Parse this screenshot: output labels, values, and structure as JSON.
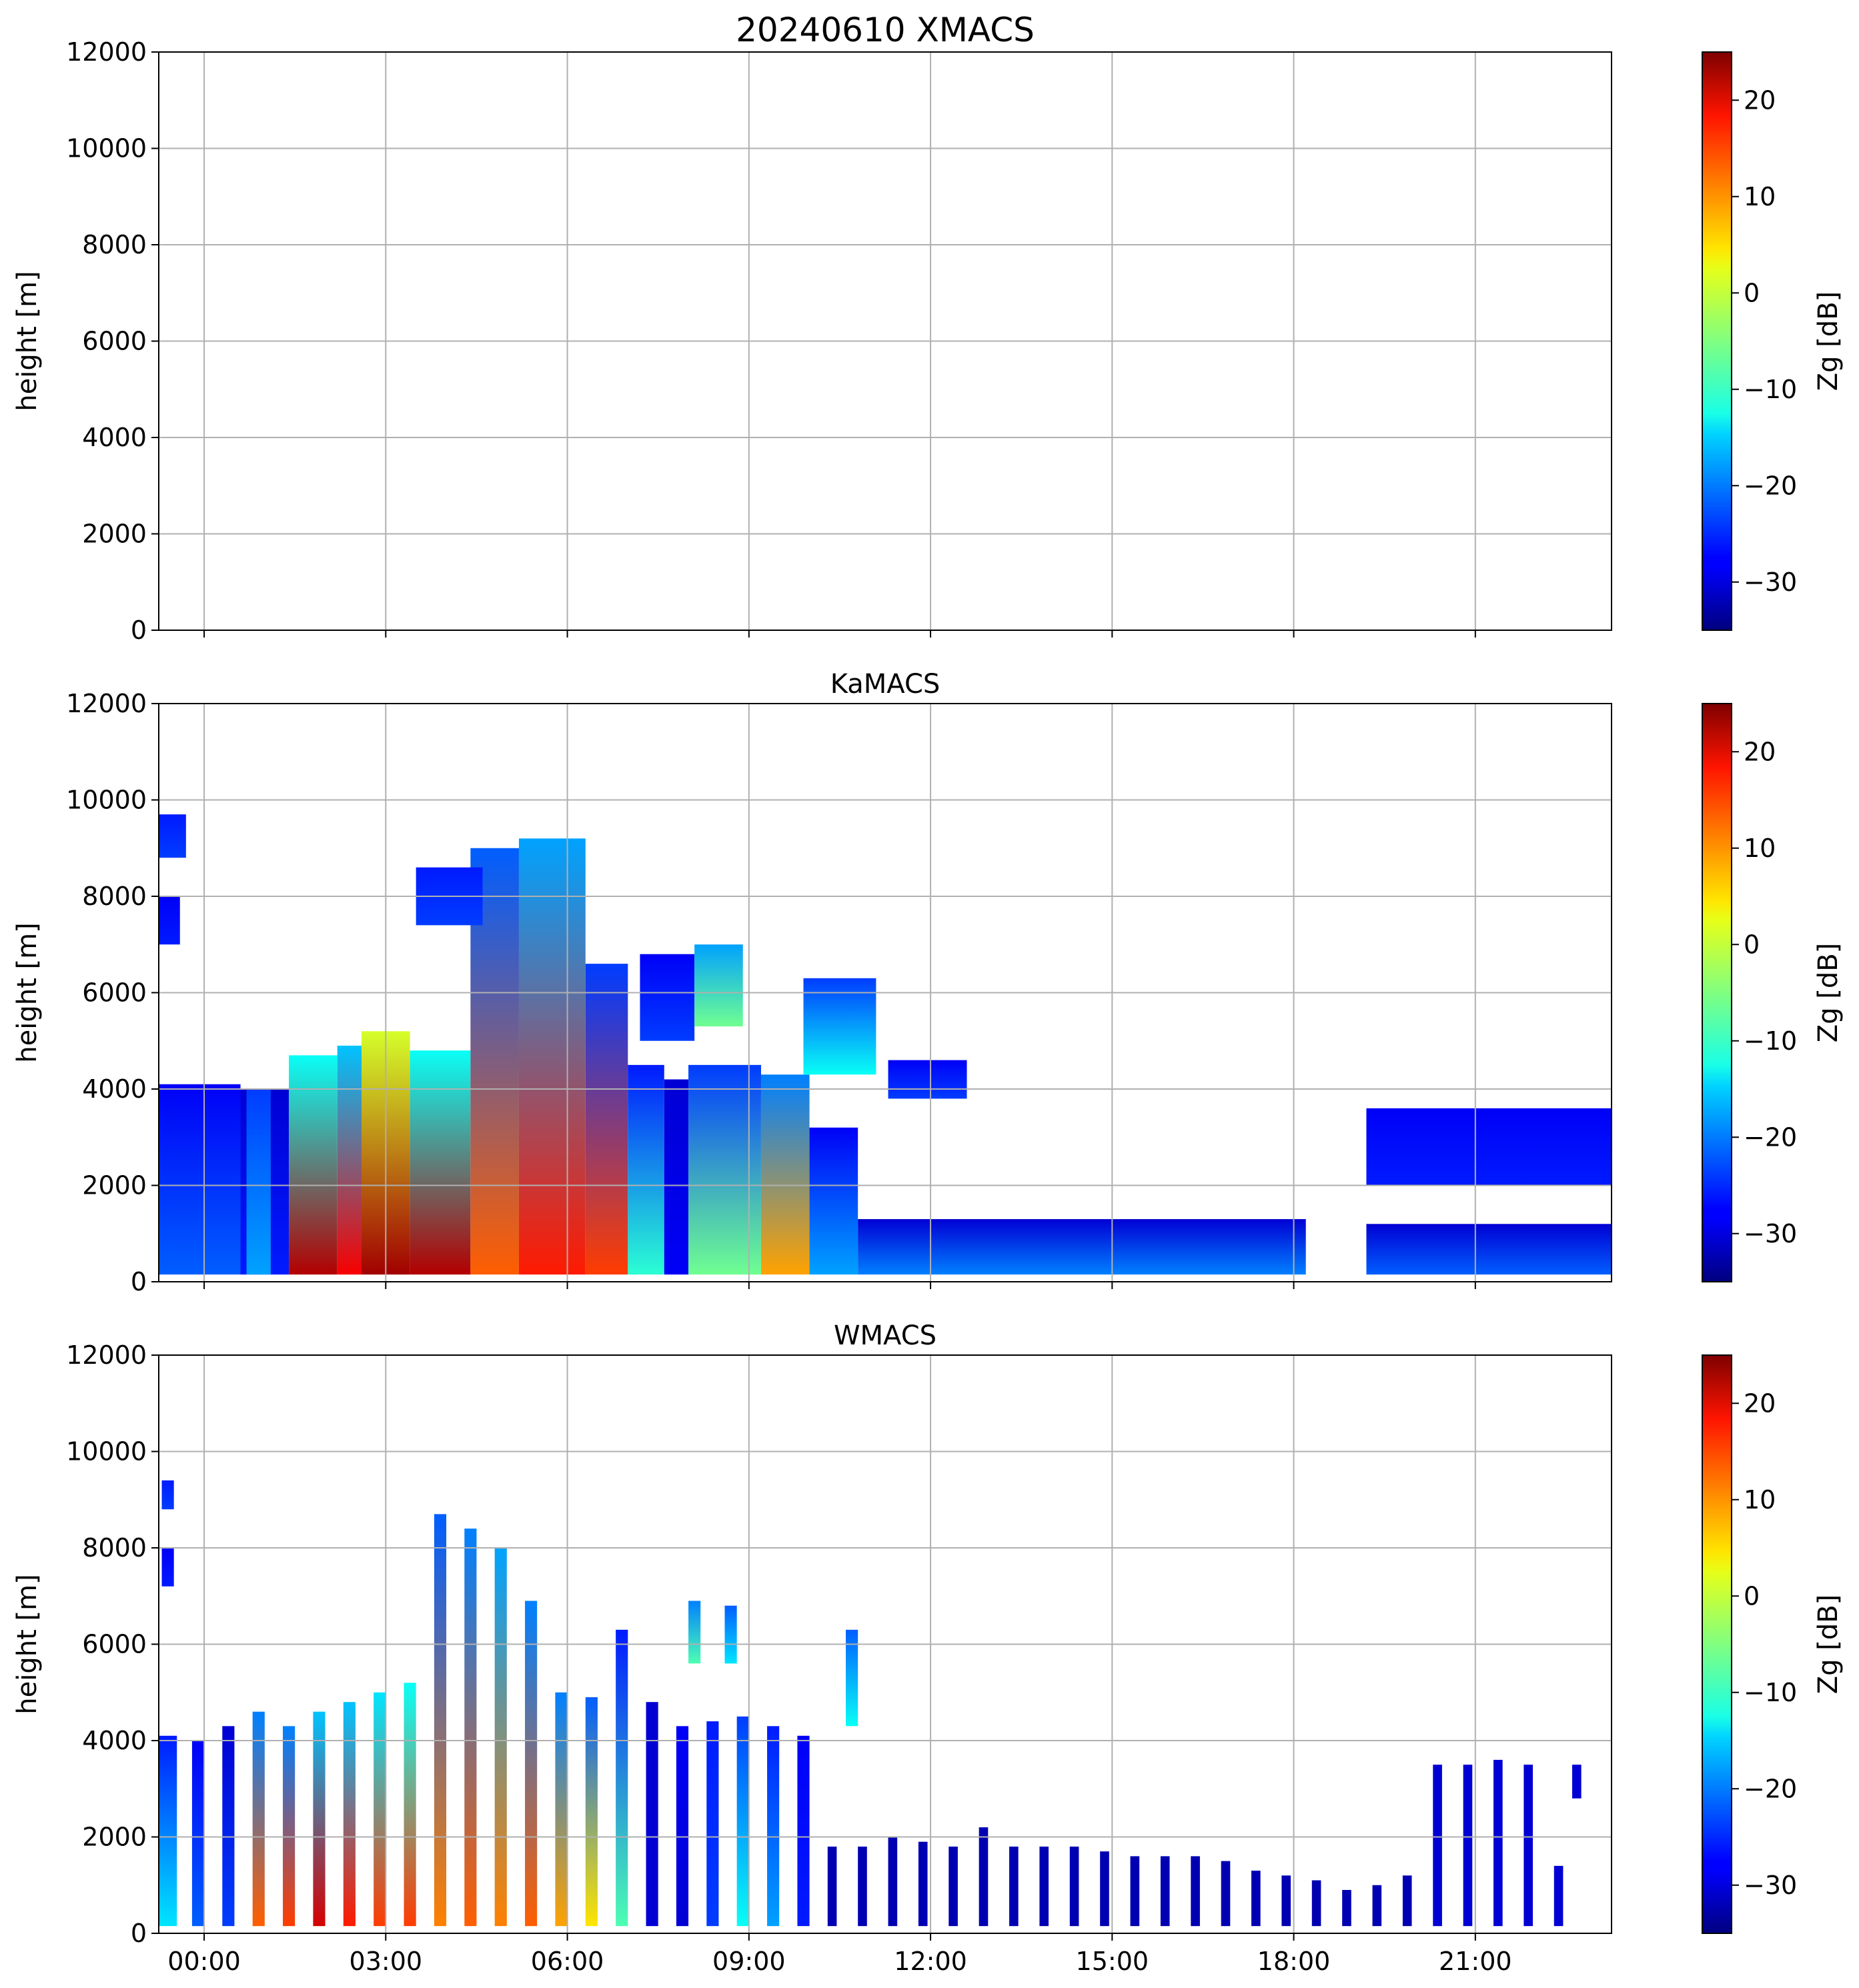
{
  "figure": {
    "title": "20240610 XMACS",
    "colormap": "jet"
  },
  "chart_data": [
    {
      "type": "heatmap",
      "panel": "XMACS",
      "title": "20240610 XMACS",
      "xlabel": "",
      "ylabel": "height [m]",
      "x_tick_labels": [
        "00:00",
        "03:00",
        "06:00",
        "09:00",
        "12:00",
        "15:00",
        "18:00",
        "21:00"
      ],
      "x_range_hours": [
        -0.75,
        23.25
      ],
      "ylim": [
        0,
        12000
      ],
      "y_ticks": [
        0,
        2000,
        4000,
        6000,
        8000,
        10000,
        12000
      ],
      "grid": true,
      "colorbar": {
        "label": "Zg [dB]",
        "range": [
          -35,
          25
        ],
        "ticks": [
          -30,
          -20,
          -10,
          0,
          10,
          20
        ]
      },
      "echoes": []
    },
    {
      "type": "heatmap",
      "panel": "KaMACS",
      "title": "KaMACS",
      "xlabel": "",
      "ylabel": "height [m]",
      "x_tick_labels": [
        "00:00",
        "03:00",
        "06:00",
        "09:00",
        "12:00",
        "15:00",
        "18:00",
        "21:00"
      ],
      "x_range_hours": [
        -0.75,
        23.25
      ],
      "ylim": [
        0,
        12000
      ],
      "y_ticks": [
        0,
        2000,
        4000,
        6000,
        8000,
        10000,
        12000
      ],
      "grid": true,
      "colorbar": {
        "label": "Zg [dB]",
        "range": [
          -35,
          25
        ],
        "ticks": [
          -30,
          -20,
          -10,
          0,
          10,
          20
        ]
      },
      "echoes": [
        {
          "t0": -0.75,
          "t1": 0.6,
          "z0": 150,
          "z1": 4100,
          "dbz_bottom": -22,
          "dbz_top": -28
        },
        {
          "t0": 0.6,
          "t1": 1.4,
          "z0": 150,
          "z1": 4000,
          "dbz_bottom": -26,
          "dbz_top": -30
        },
        {
          "t0": 0.7,
          "t1": 1.1,
          "z0": 150,
          "z1": 4000,
          "dbz_bottom": -18,
          "dbz_top": -24
        },
        {
          "t0": 1.4,
          "t1": 2.2,
          "z0": 150,
          "z1": 4700,
          "dbz_bottom": 22,
          "dbz_top": -12
        },
        {
          "t0": 2.2,
          "t1": 2.6,
          "z0": 150,
          "z1": 4900,
          "dbz_bottom": 18,
          "dbz_top": -16
        },
        {
          "t0": 2.6,
          "t1": 3.4,
          "z0": 150,
          "z1": 5200,
          "dbz_bottom": 23,
          "dbz_top": 0
        },
        {
          "t0": 3.4,
          "t1": 4.4,
          "z0": 150,
          "z1": 4800,
          "dbz_bottom": 22,
          "dbz_top": -12
        },
        {
          "t0": 4.4,
          "t1": 5.2,
          "z0": 150,
          "z1": 9000,
          "dbz_bottom": 12,
          "dbz_top": -22
        },
        {
          "t0": 5.2,
          "t1": 6.3,
          "z0": 150,
          "z1": 9200,
          "dbz_bottom": 16,
          "dbz_top": -18
        },
        {
          "t0": 6.3,
          "t1": 7.0,
          "z0": 150,
          "z1": 6600,
          "dbz_bottom": 14,
          "dbz_top": -24
        },
        {
          "t0": 7.0,
          "t1": 7.6,
          "z0": 150,
          "z1": 4500,
          "dbz_bottom": -10,
          "dbz_top": -26
        },
        {
          "t0": 7.6,
          "t1": 8.0,
          "z0": 150,
          "z1": 4200,
          "dbz_bottom": -28,
          "dbz_top": -30
        },
        {
          "t0": 8.0,
          "t1": 9.2,
          "z0": 150,
          "z1": 4500,
          "dbz_bottom": -6,
          "dbz_top": -24
        },
        {
          "t0": 9.2,
          "t1": 10.0,
          "z0": 150,
          "z1": 4300,
          "dbz_bottom": 8,
          "dbz_top": -20
        },
        {
          "t0": 10.0,
          "t1": 10.8,
          "z0": 150,
          "z1": 3200,
          "dbz_bottom": -18,
          "dbz_top": -28
        },
        {
          "t0": 10.8,
          "t1": 18.2,
          "z0": 150,
          "z1": 1300,
          "dbz_bottom": -20,
          "dbz_top": -30
        },
        {
          "t0": 19.2,
          "t1": 23.25,
          "z0": 150,
          "z1": 1200,
          "dbz_bottom": -22,
          "dbz_top": -30
        },
        {
          "t0": 19.2,
          "t1": 23.25,
          "z0": 2000,
          "z1": 3600,
          "dbz_bottom": -26,
          "dbz_top": -28
        },
        {
          "t0": -0.75,
          "t1": -0.3,
          "z0": 8800,
          "z1": 9700,
          "dbz_bottom": -24,
          "dbz_top": -26
        },
        {
          "t0": -0.75,
          "t1": -0.4,
          "z0": 7000,
          "z1": 8000,
          "dbz_bottom": -26,
          "dbz_top": -28
        },
        {
          "t0": 3.5,
          "t1": 4.6,
          "z0": 7400,
          "z1": 8600,
          "dbz_bottom": -24,
          "dbz_top": -26
        },
        {
          "t0": 7.2,
          "t1": 8.1,
          "z0": 5000,
          "z1": 6800,
          "dbz_bottom": -24,
          "dbz_top": -28
        },
        {
          "t0": 8.1,
          "t1": 8.9,
          "z0": 5300,
          "z1": 7000,
          "dbz_bottom": -6,
          "dbz_top": -18
        },
        {
          "t0": 9.9,
          "t1": 11.1,
          "z0": 4300,
          "z1": 6300,
          "dbz_bottom": -12,
          "dbz_top": -24
        },
        {
          "t0": 11.3,
          "t1": 12.6,
          "z0": 3800,
          "z1": 4600,
          "dbz_bottom": -24,
          "dbz_top": -28
        }
      ]
    },
    {
      "type": "heatmap",
      "panel": "WMACS",
      "title": "WMACS",
      "xlabel": "",
      "ylabel": "height [m]",
      "x_tick_labels": [
        "00:00",
        "03:00",
        "06:00",
        "09:00",
        "12:00",
        "15:00",
        "18:00",
        "21:00"
      ],
      "x_range_hours": [
        -0.75,
        23.25
      ],
      "ylim": [
        0,
        12000
      ],
      "y_ticks": [
        0,
        2000,
        4000,
        6000,
        8000,
        10000,
        12000
      ],
      "grid": true,
      "colorbar": {
        "label": "Zg [dB]",
        "range": [
          -35,
          25
        ],
        "ticks": [
          -30,
          -20,
          -10,
          0,
          10,
          20
        ]
      },
      "echoes": [
        {
          "t0": -0.75,
          "t1": -0.45,
          "z0": 150,
          "z1": 4100,
          "dbz_bottom": -14,
          "dbz_top": -26
        },
        {
          "t0": -0.2,
          "t1": 0.0,
          "z0": 150,
          "z1": 4000,
          "dbz_bottom": -22,
          "dbz_top": -28
        },
        {
          "t0": 0.3,
          "t1": 0.5,
          "z0": 150,
          "z1": 4300,
          "dbz_bottom": -24,
          "dbz_top": -30
        },
        {
          "t0": 0.8,
          "t1": 1.0,
          "z0": 150,
          "z1": 4600,
          "dbz_bottom": 12,
          "dbz_top": -20
        },
        {
          "t0": 1.3,
          "t1": 1.5,
          "z0": 150,
          "z1": 4300,
          "dbz_bottom": 14,
          "dbz_top": -20
        },
        {
          "t0": 1.8,
          "t1": 2.0,
          "z0": 150,
          "z1": 4600,
          "dbz_bottom": 20,
          "dbz_top": -16
        },
        {
          "t0": 2.3,
          "t1": 2.5,
          "z0": 150,
          "z1": 4800,
          "dbz_bottom": 16,
          "dbz_top": -16
        },
        {
          "t0": 2.8,
          "t1": 3.0,
          "z0": 150,
          "z1": 5000,
          "dbz_bottom": 14,
          "dbz_top": -14
        },
        {
          "t0": 3.3,
          "t1": 3.5,
          "z0": 150,
          "z1": 5200,
          "dbz_bottom": 14,
          "dbz_top": -12
        },
        {
          "t0": 3.8,
          "t1": 4.0,
          "z0": 150,
          "z1": 8700,
          "dbz_bottom": 10,
          "dbz_top": -22
        },
        {
          "t0": 4.3,
          "t1": 4.5,
          "z0": 150,
          "z1": 8400,
          "dbz_bottom": 12,
          "dbz_top": -20
        },
        {
          "t0": 4.8,
          "t1": 5.0,
          "z0": 150,
          "z1": 8000,
          "dbz_bottom": 10,
          "dbz_top": -18
        },
        {
          "t0": 5.3,
          "t1": 5.5,
          "z0": 150,
          "z1": 6900,
          "dbz_bottom": 12,
          "dbz_top": -20
        },
        {
          "t0": 5.8,
          "t1": 6.0,
          "z0": 150,
          "z1": 5000,
          "dbz_bottom": 8,
          "dbz_top": -20
        },
        {
          "t0": 6.3,
          "t1": 6.5,
          "z0": 150,
          "z1": 4900,
          "dbz_bottom": 4,
          "dbz_top": -22
        },
        {
          "t0": 6.8,
          "t1": 7.0,
          "z0": 150,
          "z1": 6300,
          "dbz_bottom": -8,
          "dbz_top": -26
        },
        {
          "t0": 7.3,
          "t1": 7.5,
          "z0": 150,
          "z1": 4800,
          "dbz_bottom": -30,
          "dbz_top": -30
        },
        {
          "t0": 7.8,
          "t1": 8.0,
          "z0": 150,
          "z1": 4300,
          "dbz_bottom": -30,
          "dbz_top": -28
        },
        {
          "t0": 8.3,
          "t1": 8.5,
          "z0": 150,
          "z1": 4400,
          "dbz_bottom": -24,
          "dbz_top": -26
        },
        {
          "t0": 8.8,
          "t1": 9.0,
          "z0": 150,
          "z1": 4500,
          "dbz_bottom": -12,
          "dbz_top": -24
        },
        {
          "t0": 9.3,
          "t1": 9.5,
          "z0": 150,
          "z1": 4300,
          "dbz_bottom": -18,
          "dbz_top": -26
        },
        {
          "t0": 9.8,
          "t1": 10.0,
          "z0": 150,
          "z1": 4100,
          "dbz_bottom": -26,
          "dbz_top": -28
        },
        {
          "t0": 10.3,
          "t1": 10.45,
          "z0": 150,
          "z1": 1800,
          "dbz_bottom": -32,
          "dbz_top": -32
        },
        {
          "t0": 10.8,
          "t1": 10.95,
          "z0": 150,
          "z1": 1800,
          "dbz_bottom": -32,
          "dbz_top": -32
        },
        {
          "t0": 11.3,
          "t1": 11.45,
          "z0": 150,
          "z1": 2000,
          "dbz_bottom": -32,
          "dbz_top": -32
        },
        {
          "t0": 11.8,
          "t1": 11.95,
          "z0": 150,
          "z1": 1900,
          "dbz_bottom": -32,
          "dbz_top": -32
        },
        {
          "t0": 12.3,
          "t1": 12.45,
          "z0": 150,
          "z1": 1800,
          "dbz_bottom": -32,
          "dbz_top": -32
        },
        {
          "t0": 12.8,
          "t1": 12.95,
          "z0": 150,
          "z1": 2200,
          "dbz_bottom": -32,
          "dbz_top": -32
        },
        {
          "t0": 13.3,
          "t1": 13.45,
          "z0": 150,
          "z1": 1800,
          "dbz_bottom": -32,
          "dbz_top": -32
        },
        {
          "t0": 13.8,
          "t1": 13.95,
          "z0": 150,
          "z1": 1800,
          "dbz_bottom": -32,
          "dbz_top": -32
        },
        {
          "t0": 14.3,
          "t1": 14.45,
          "z0": 150,
          "z1": 1800,
          "dbz_bottom": -32,
          "dbz_top": -32
        },
        {
          "t0": 14.8,
          "t1": 14.95,
          "z0": 150,
          "z1": 1700,
          "dbz_bottom": -32,
          "dbz_top": -32
        },
        {
          "t0": 15.3,
          "t1": 15.45,
          "z0": 150,
          "z1": 1600,
          "dbz_bottom": -32,
          "dbz_top": -32
        },
        {
          "t0": 15.8,
          "t1": 15.95,
          "z0": 150,
          "z1": 1600,
          "dbz_bottom": -32,
          "dbz_top": -32
        },
        {
          "t0": 16.3,
          "t1": 16.45,
          "z0": 150,
          "z1": 1600,
          "dbz_bottom": -32,
          "dbz_top": -32
        },
        {
          "t0": 16.8,
          "t1": 16.95,
          "z0": 150,
          "z1": 1500,
          "dbz_bottom": -32,
          "dbz_top": -32
        },
        {
          "t0": 17.3,
          "t1": 17.45,
          "z0": 150,
          "z1": 1300,
          "dbz_bottom": -32,
          "dbz_top": -32
        },
        {
          "t0": 17.8,
          "t1": 17.95,
          "z0": 150,
          "z1": 1200,
          "dbz_bottom": -32,
          "dbz_top": -32
        },
        {
          "t0": 18.3,
          "t1": 18.45,
          "z0": 150,
          "z1": 1100,
          "dbz_bottom": -32,
          "dbz_top": -32
        },
        {
          "t0": 18.8,
          "t1": 18.95,
          "z0": 150,
          "z1": 900,
          "dbz_bottom": -32,
          "dbz_top": -32
        },
        {
          "t0": 19.3,
          "t1": 19.45,
          "z0": 150,
          "z1": 1000,
          "dbz_bottom": -32,
          "dbz_top": -32
        },
        {
          "t0": 19.8,
          "t1": 19.95,
          "z0": 150,
          "z1": 1200,
          "dbz_bottom": -32,
          "dbz_top": -32
        },
        {
          "t0": 20.3,
          "t1": 20.45,
          "z0": 150,
          "z1": 3500,
          "dbz_bottom": -30,
          "dbz_top": -30
        },
        {
          "t0": 20.8,
          "t1": 20.95,
          "z0": 150,
          "z1": 3500,
          "dbz_bottom": -30,
          "dbz_top": -30
        },
        {
          "t0": 21.3,
          "t1": 21.45,
          "z0": 150,
          "z1": 3600,
          "dbz_bottom": -30,
          "dbz_top": -30
        },
        {
          "t0": 21.8,
          "t1": 21.95,
          "z0": 150,
          "z1": 3500,
          "dbz_bottom": -30,
          "dbz_top": -30
        },
        {
          "t0": 22.3,
          "t1": 22.45,
          "z0": 150,
          "z1": 1400,
          "dbz_bottom": -30,
          "dbz_top": -30
        },
        {
          "t0": 22.6,
          "t1": 22.75,
          "z0": 2800,
          "z1": 3500,
          "dbz_bottom": -30,
          "dbz_top": -30
        },
        {
          "t0": -0.7,
          "t1": -0.5,
          "z0": 8800,
          "z1": 9400,
          "dbz_bottom": -24,
          "dbz_top": -26
        },
        {
          "t0": -0.7,
          "t1": -0.5,
          "z0": 7200,
          "z1": 8000,
          "dbz_bottom": -26,
          "dbz_top": -28
        },
        {
          "t0": 8.0,
          "t1": 8.2,
          "z0": 5600,
          "z1": 6900,
          "dbz_bottom": -8,
          "dbz_top": -20
        },
        {
          "t0": 8.6,
          "t1": 8.8,
          "z0": 5600,
          "z1": 6800,
          "dbz_bottom": -14,
          "dbz_top": -22
        },
        {
          "t0": 10.6,
          "t1": 10.8,
          "z0": 4300,
          "z1": 6300,
          "dbz_bottom": -12,
          "dbz_top": -22
        }
      ]
    }
  ]
}
